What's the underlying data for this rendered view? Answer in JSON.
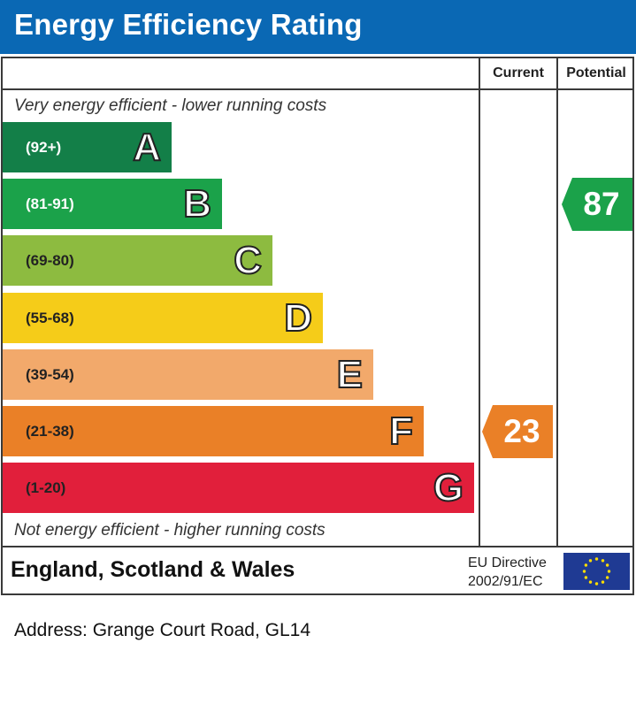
{
  "header": {
    "title": "Energy Efficiency Rating"
  },
  "columns": {
    "current": "Current",
    "potential": "Potential"
  },
  "notes": {
    "top": "Very energy efficient - lower running costs",
    "bottom": "Not energy efficient - higher running costs"
  },
  "colors": {
    "header": "#0a68b4",
    "A": "#137f48",
    "B": "#1ba24a",
    "C": "#8dbb40",
    "D": "#f5cc19",
    "E": "#f2a96b",
    "F": "#ea8027",
    "G": "#e11f3b"
  },
  "chart_data": {
    "type": "bar",
    "title": "Energy Efficiency Rating",
    "bands": [
      {
        "letter": "A",
        "range": "(92+)",
        "min": 92,
        "max": 100
      },
      {
        "letter": "B",
        "range": "(81-91)",
        "min": 81,
        "max": 91
      },
      {
        "letter": "C",
        "range": "(69-80)",
        "min": 69,
        "max": 80
      },
      {
        "letter": "D",
        "range": "(55-68)",
        "min": 55,
        "max": 68
      },
      {
        "letter": "E",
        "range": "(39-54)",
        "min": 39,
        "max": 54
      },
      {
        "letter": "F",
        "range": "(21-38)",
        "min": 21,
        "max": 38
      },
      {
        "letter": "G",
        "range": "(1-20)",
        "min": 1,
        "max": 20
      }
    ],
    "current": {
      "value": "23",
      "band": "F"
    },
    "potential": {
      "value": "87",
      "band": "B"
    }
  },
  "footer": {
    "region": "England, Scotland & Wales",
    "directive_line1": "EU Directive",
    "directive_line2": "2002/91/EC",
    "flag_icon": "eu-flag-icon"
  },
  "address": "Address: Grange Court Road, GL14"
}
